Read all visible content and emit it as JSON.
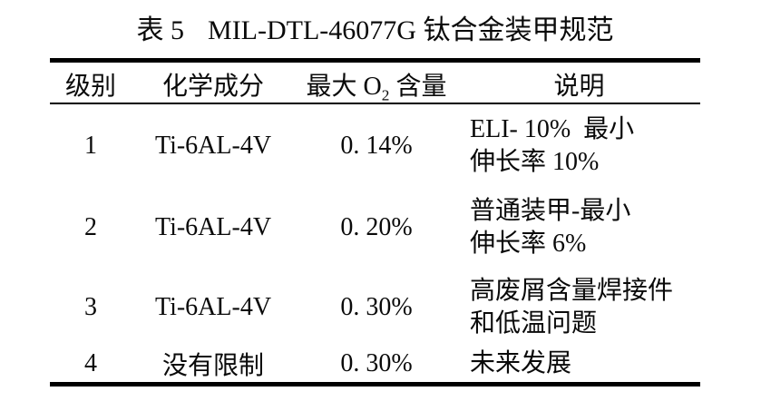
{
  "caption": {
    "label": "表 5",
    "title": "MIL-DTL-46077G 钛合金装甲规范"
  },
  "table": {
    "headers": {
      "grade": "级别",
      "composition": "化学成分",
      "o2_pre": "最大 O",
      "o2_sub": "2",
      "o2_post": " 含量",
      "description": "说明"
    },
    "rows": [
      {
        "grade": "1",
        "composition": "Ti-6AL-4V",
        "max_o2": "0. 14%",
        "description": "ELI- 10% 最小\n伸长率 10%"
      },
      {
        "grade": "2",
        "composition": "Ti-6AL-4V",
        "max_o2": "0. 20%",
        "description": "普通装甲-最小\n伸长率 6%"
      },
      {
        "grade": "3",
        "composition": "Ti-6AL-4V",
        "max_o2": "0. 30%",
        "description": "高废屑含量焊接件\n和低温问题"
      },
      {
        "grade": "4",
        "composition": "没有限制",
        "max_o2": "0. 30%",
        "description": "未来发展"
      }
    ]
  },
  "colors": {
    "text": "#000000",
    "rule": "#000000",
    "background": "#ffffff"
  }
}
